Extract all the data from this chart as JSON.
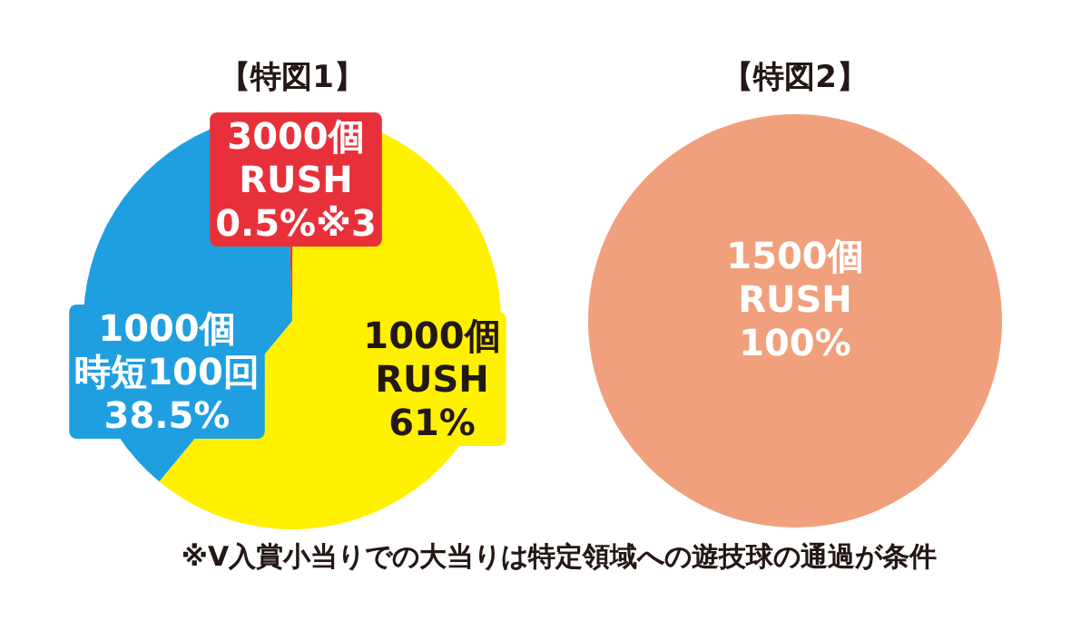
{
  "chart_data": [
    {
      "type": "pie",
      "title": "【特図1】",
      "categories": [
        "1000個 RUSH",
        "1000個時短100回",
        "3000個 RUSH"
      ],
      "values": [
        61,
        38.5,
        0.5
      ],
      "value_labels": [
        "61%",
        "38.5%",
        "0.5%※3"
      ],
      "colors": [
        "#fff100",
        "#1f9fe0",
        "#e8303a"
      ],
      "annotations": [
        "※V入賞小当りでの大当りは特定領域への遊技球の通過が条件"
      ]
    },
    {
      "type": "pie",
      "title": "【特図2】",
      "categories": [
        "1500個 RUSH"
      ],
      "values": [
        100
      ],
      "value_labels": [
        "100%"
      ],
      "colors": [
        "#f0a07c"
      ]
    }
  ]
}
